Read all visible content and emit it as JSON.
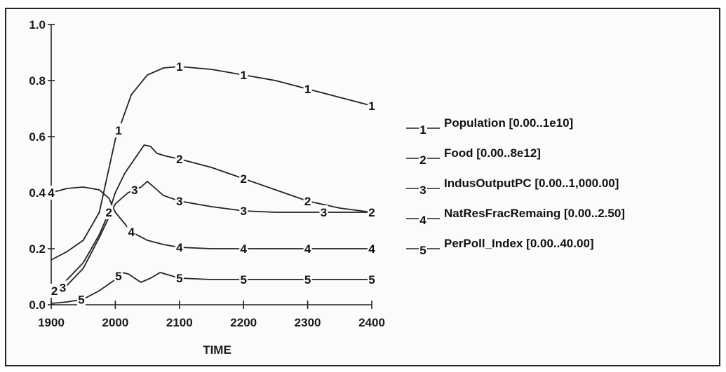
{
  "chart_data": {
    "type": "line",
    "xlabel": "TIME",
    "xlim": [
      1900,
      2400
    ],
    "ylim": [
      0,
      1.0
    ],
    "x_ticks": [
      "1900",
      "2000",
      "2100",
      "2200",
      "2300",
      "2400"
    ],
    "y_ticks": [
      "0.0",
      "0.2",
      "0.4",
      "0.6",
      "0.8",
      "1.0"
    ],
    "grid": false,
    "legend_position": "right",
    "series": [
      {
        "name": "Population [0.00..1e10]",
        "marker": "1",
        "points": [
          [
            1900,
            0.16
          ],
          [
            1925,
            0.19
          ],
          [
            1950,
            0.23
          ],
          [
            1975,
            0.33
          ],
          [
            2000,
            0.59
          ],
          [
            2025,
            0.75
          ],
          [
            2050,
            0.82
          ],
          [
            2075,
            0.845
          ],
          [
            2100,
            0.85
          ],
          [
            2150,
            0.84
          ],
          [
            2200,
            0.82
          ],
          [
            2250,
            0.8
          ],
          [
            2300,
            0.77
          ],
          [
            2350,
            0.74
          ],
          [
            2400,
            0.71
          ]
        ],
        "marker_x": [
          2005,
          2100,
          2200,
          2300,
          2400
        ]
      },
      {
        "name": "Food [0.00..8e12]",
        "marker": "2",
        "points": [
          [
            1900,
            0.04
          ],
          [
            1925,
            0.09
          ],
          [
            1950,
            0.15
          ],
          [
            1975,
            0.25
          ],
          [
            1990,
            0.33
          ],
          [
            2000,
            0.4
          ],
          [
            2015,
            0.47
          ],
          [
            2030,
            0.52
          ],
          [
            2045,
            0.57
          ],
          [
            2055,
            0.565
          ],
          [
            2065,
            0.54
          ],
          [
            2080,
            0.53
          ],
          [
            2100,
            0.52
          ],
          [
            2150,
            0.49
          ],
          [
            2200,
            0.45
          ],
          [
            2250,
            0.41
          ],
          [
            2300,
            0.37
          ],
          [
            2350,
            0.345
          ],
          [
            2400,
            0.33
          ]
        ],
        "marker_x": [
          1905,
          1990,
          2100,
          2200,
          2300,
          2400
        ]
      },
      {
        "name": "IndusOutputPC [0.00..1,000.00]",
        "marker": "3",
        "points": [
          [
            1900,
            0.04
          ],
          [
            1925,
            0.07
          ],
          [
            1950,
            0.13
          ],
          [
            1975,
            0.24
          ],
          [
            2000,
            0.36
          ],
          [
            2020,
            0.4
          ],
          [
            2040,
            0.42
          ],
          [
            2050,
            0.44
          ],
          [
            2060,
            0.42
          ],
          [
            2075,
            0.39
          ],
          [
            2100,
            0.37
          ],
          [
            2150,
            0.35
          ],
          [
            2200,
            0.335
          ],
          [
            2250,
            0.33
          ],
          [
            2300,
            0.33
          ],
          [
            2350,
            0.33
          ],
          [
            2400,
            0.33
          ]
        ],
        "marker_x": [
          1918,
          2030,
          2100,
          2200,
          2325
        ]
      },
      {
        "name": "NatResFracRemaing [0.00..2.50]",
        "marker": "4",
        "points": [
          [
            1900,
            0.4
          ],
          [
            1925,
            0.415
          ],
          [
            1950,
            0.42
          ],
          [
            1975,
            0.41
          ],
          [
            1990,
            0.38
          ],
          [
            2000,
            0.33
          ],
          [
            2025,
            0.26
          ],
          [
            2050,
            0.23
          ],
          [
            2075,
            0.215
          ],
          [
            2100,
            0.205
          ],
          [
            2150,
            0.2
          ],
          [
            2200,
            0.2
          ],
          [
            2300,
            0.2
          ],
          [
            2400,
            0.2
          ]
        ],
        "marker_x": [
          1900,
          2025,
          2100,
          2200,
          2300,
          2400
        ]
      },
      {
        "name": "PerPoll_Index [0.00..40.00]",
        "marker": "5",
        "points": [
          [
            1900,
            0.005
          ],
          [
            1925,
            0.01
          ],
          [
            1950,
            0.02
          ],
          [
            1975,
            0.05
          ],
          [
            2000,
            0.09
          ],
          [
            2010,
            0.115
          ],
          [
            2020,
            0.11
          ],
          [
            2040,
            0.08
          ],
          [
            2055,
            0.095
          ],
          [
            2070,
            0.115
          ],
          [
            2085,
            0.105
          ],
          [
            2100,
            0.095
          ],
          [
            2150,
            0.09
          ],
          [
            2200,
            0.09
          ],
          [
            2300,
            0.09
          ],
          [
            2400,
            0.09
          ]
        ],
        "marker_x": [
          1947,
          2005,
          2100,
          2200,
          2300,
          2400
        ]
      }
    ]
  }
}
